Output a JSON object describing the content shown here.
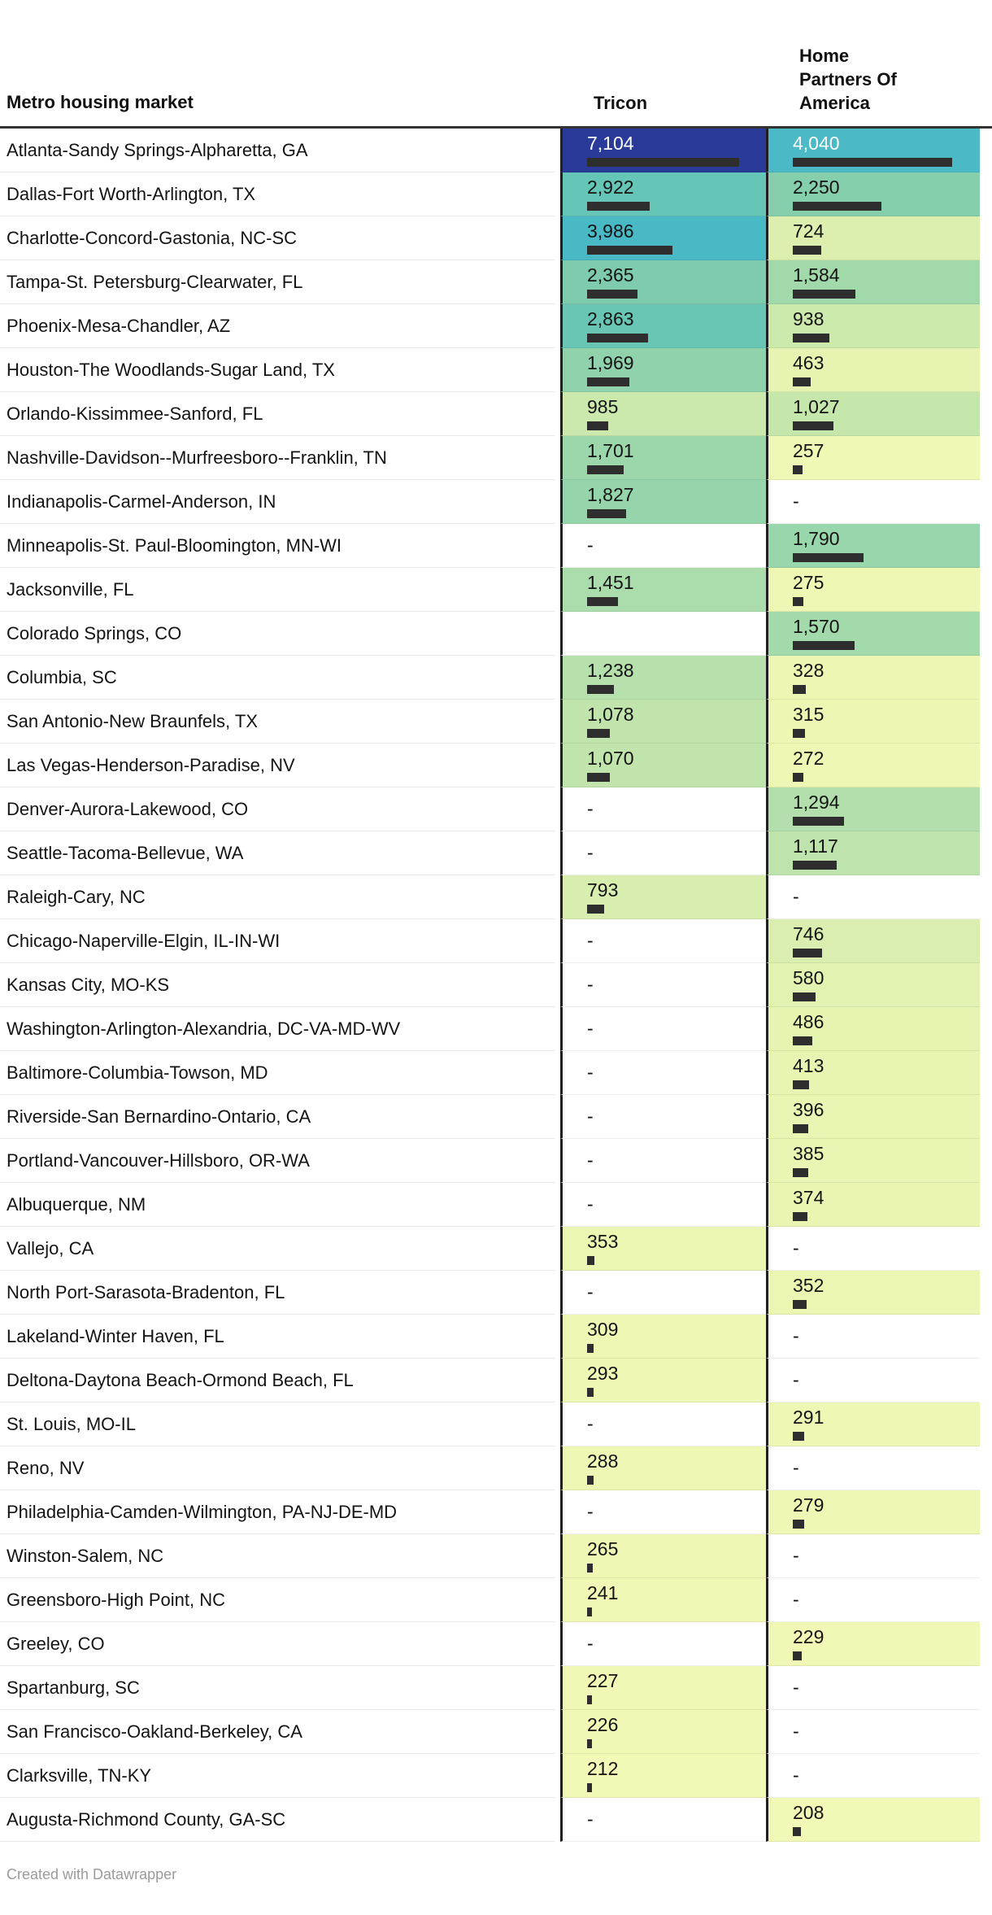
{
  "header": {
    "market_label": "Metro housing market",
    "tricon_label": "Tricon",
    "hpa_label": "Home\nPartners Of\nAmerica"
  },
  "columns": {
    "tricon_max": 7104,
    "hpa_max": 4040
  },
  "colors": {
    "header_rule": "#333333",
    "axis_line": "#202020",
    "bar": "#2e2e2e",
    "row_divider": "#e9e9e9",
    "credit_text": "#9b9b9b",
    "top_cell_blue": "#293a99",
    "top_cell_teal": "#4bbac6"
  },
  "footer": {
    "credit": "Created with Datawrapper"
  },
  "rows": [
    {
      "market": "Atlanta-Sandy Springs-Alpharetta, GA",
      "tricon": {
        "label": "7,104",
        "num": 7104,
        "bg": "#293a99",
        "text": "#ffffff"
      },
      "hpa": {
        "label": "4,040",
        "num": 4040,
        "bg": "#4bbac6",
        "text": "#ffffff"
      }
    },
    {
      "market": "Dallas-Fort Worth-Arlington, TX",
      "tricon": {
        "label": "2,922",
        "num": 2922,
        "bg": "#65c5b6",
        "text": "#141414"
      },
      "hpa": {
        "label": "2,250",
        "num": 2250,
        "bg": "#85cfad",
        "text": "#141414"
      }
    },
    {
      "market": "Charlotte-Concord-Gastonia, NC-SC",
      "tricon": {
        "label": "3,986",
        "num": 3986,
        "bg": "#49b9c6",
        "text": "#141414"
      },
      "hpa": {
        "label": "724",
        "num": 724,
        "bg": "#dcefae",
        "text": "#141414"
      }
    },
    {
      "market": "Tampa-St. Petersburg-Clearwater, FL",
      "tricon": {
        "label": "2,365",
        "num": 2365,
        "bg": "#7ecbad",
        "text": "#141414"
      },
      "hpa": {
        "label": "1,584",
        "num": 1584,
        "bg": "#a2d9ab",
        "text": "#141414"
      }
    },
    {
      "market": "Phoenix-Mesa-Chandler, AZ",
      "tricon": {
        "label": "2,863",
        "num": 2863,
        "bg": "#69c6b4",
        "text": "#141414"
      },
      "hpa": {
        "label": "938",
        "num": 938,
        "bg": "#cdeaad",
        "text": "#141414"
      }
    },
    {
      "market": "Houston-The Woodlands-Sugar Land, TX",
      "tricon": {
        "label": "1,969",
        "num": 1969,
        "bg": "#90d2ab",
        "text": "#141414"
      },
      "hpa": {
        "label": "463",
        "num": 463,
        "bg": "#e7f4b1",
        "text": "#141414"
      }
    },
    {
      "market": "Orlando-Kissimmee-Sanford, FL",
      "tricon": {
        "label": "985",
        "num": 985,
        "bg": "#cbe8ad",
        "text": "#141414"
      },
      "hpa": {
        "label": "1,027",
        "num": 1027,
        "bg": "#c6e7ac",
        "text": "#141414"
      }
    },
    {
      "market": "Nashville-Davidson--Murfreesboro--Franklin, TN",
      "tricon": {
        "label": "1,701",
        "num": 1701,
        "bg": "#9cd7ab",
        "text": "#141414"
      },
      "hpa": {
        "label": "257",
        "num": null,
        "bg": "#f0f8b5",
        "text": "#141414",
        "numbar": 257
      }
    },
    {
      "market": "Indianapolis-Carmel-Anderson, IN",
      "tricon": {
        "label": "1,827",
        "num": 1827,
        "bg": "#96d5ab",
        "text": "#141414"
      },
      "hpa": {
        "label": "-",
        "num": null,
        "bg": "#ffffff",
        "text": "#141414"
      }
    },
    {
      "market": "Minneapolis-St. Paul-Bloomington, MN-WI",
      "tricon": {
        "label": "-",
        "num": null,
        "bg": "#ffffff",
        "text": "#141414"
      },
      "hpa": {
        "label": "1,790",
        "num": 1790,
        "bg": "#98d6ab",
        "text": "#141414"
      }
    },
    {
      "market": "Jacksonville, FL",
      "tricon": {
        "label": "1,451",
        "num": 1451,
        "bg": "#aadcac",
        "text": "#141414"
      },
      "hpa": {
        "label": "275",
        "num": 275,
        "bg": "#eff7b4",
        "text": "#141414"
      }
    },
    {
      "market": "Colorado Springs, CO",
      "tricon": null,
      "hpa": {
        "label": "1,570",
        "num": 1570,
        "bg": "#a3daab",
        "text": "#141414"
      }
    },
    {
      "market": "Columbia, SC",
      "tricon": {
        "label": "1,238",
        "num": 1238,
        "bg": "#b6e0ac",
        "text": "#141414"
      },
      "hpa": {
        "label": "328",
        "num": 328,
        "bg": "#edf6b3",
        "text": "#141414"
      }
    },
    {
      "market": "San Antonio-New Braunfels, TX",
      "tricon": {
        "label": "1,078",
        "num": 1078,
        "bg": "#c0e4ac",
        "text": "#141414"
      },
      "hpa": {
        "label": "315",
        "num": 315,
        "bg": "#edf6b3",
        "text": "#141414"
      }
    },
    {
      "market": "Las Vegas-Henderson-Paradise, NV",
      "tricon": {
        "label": "1,070",
        "num": 1070,
        "bg": "#c1e4ac",
        "text": "#141414"
      },
      "hpa": {
        "label": "272",
        "num": 272,
        "bg": "#eff7b4",
        "text": "#141414"
      }
    },
    {
      "market": "Denver-Aurora-Lakewood, CO",
      "tricon": {
        "label": "-",
        "num": null,
        "bg": "#ffffff",
        "text": "#141414"
      },
      "hpa": {
        "label": "1,294",
        "num": 1294,
        "bg": "#b2dfac",
        "text": "#141414"
      }
    },
    {
      "market": "Seattle-Tacoma-Bellevue, WA",
      "tricon": {
        "label": "-",
        "num": null,
        "bg": "#ffffff",
        "text": "#141414"
      },
      "hpa": {
        "label": "1,117",
        "num": 1117,
        "bg": "#bee3ac",
        "text": "#141414"
      }
    },
    {
      "market": "Raleigh-Cary, NC",
      "tricon": {
        "label": "793",
        "num": 793,
        "bg": "#d8eeae",
        "text": "#141414"
      },
      "hpa": {
        "label": "-",
        "num": null,
        "bg": "#ffffff",
        "text": "#141414"
      }
    },
    {
      "market": "Chicago-Naperville-Elgin, IL-IN-WI",
      "tricon": {
        "label": "-",
        "num": null,
        "bg": "#ffffff",
        "text": "#141414"
      },
      "hpa": {
        "label": "746",
        "num": 746,
        "bg": "#daefaf",
        "text": "#141414"
      }
    },
    {
      "market": "Kansas City, MO-KS",
      "tricon": {
        "label": "-",
        "num": null,
        "bg": "#ffffff",
        "text": "#141414"
      },
      "hpa": {
        "label": "580",
        "num": 580,
        "bg": "#e2f2b0",
        "text": "#141414"
      }
    },
    {
      "market": "Washington-Arlington-Alexandria, DC-VA-MD-WV",
      "tricon": {
        "label": "-",
        "num": null,
        "bg": "#ffffff",
        "text": "#141414"
      },
      "hpa": {
        "label": "486",
        "num": 486,
        "bg": "#e6f4b1",
        "text": "#141414"
      }
    },
    {
      "market": "Baltimore-Columbia-Towson, MD",
      "tricon": {
        "label": "-",
        "num": null,
        "bg": "#ffffff",
        "text": "#141414"
      },
      "hpa": {
        "label": "413",
        "num": 413,
        "bg": "#e8f5b2",
        "text": "#141414"
      }
    },
    {
      "market": "Riverside-San Bernardino-Ontario, CA",
      "tricon": {
        "label": "-",
        "num": null,
        "bg": "#ffffff",
        "text": "#141414"
      },
      "hpa": {
        "label": "396",
        "num": 396,
        "bg": "#e9f5b2",
        "text": "#141414"
      }
    },
    {
      "market": "Portland-Vancouver-Hillsboro, OR-WA",
      "tricon": {
        "label": "-",
        "num": null,
        "bg": "#ffffff",
        "text": "#141414"
      },
      "hpa": {
        "label": "385",
        "num": 385,
        "bg": "#e9f5b2",
        "text": "#141414"
      }
    },
    {
      "market": "Albuquerque, NM",
      "tricon": {
        "label": "-",
        "num": null,
        "bg": "#ffffff",
        "text": "#141414"
      },
      "hpa": {
        "label": "374",
        "num": 374,
        "bg": "#eaf5b2",
        "text": "#141414"
      }
    },
    {
      "market": "Vallejo, CA",
      "tricon": {
        "label": "353",
        "num": 353,
        "bg": "#ecf6b3",
        "text": "#141414"
      },
      "hpa": {
        "label": "-",
        "num": null,
        "bg": "#ffffff",
        "text": "#141414"
      }
    },
    {
      "market": "North Port-Sarasota-Bradenton, FL",
      "tricon": {
        "label": "-",
        "num": null,
        "bg": "#ffffff",
        "text": "#141414"
      },
      "hpa": {
        "label": "352",
        "num": 352,
        "bg": "#ecf6b3",
        "text": "#141414"
      }
    },
    {
      "market": "Lakeland-Winter Haven, FL",
      "tricon": {
        "label": "309",
        "num": 309,
        "bg": "#eef7b4",
        "text": "#141414"
      },
      "hpa": {
        "label": "-",
        "num": null,
        "bg": "#ffffff",
        "text": "#141414"
      }
    },
    {
      "market": "Deltona-Daytona Beach-Ormond Beach, FL",
      "tricon": {
        "label": "293",
        "num": 293,
        "bg": "#eef7b4",
        "text": "#141414"
      },
      "hpa": {
        "label": "-",
        "num": null,
        "bg": "#ffffff",
        "text": "#141414"
      }
    },
    {
      "market": "St. Louis, MO-IL",
      "tricon": {
        "label": "-",
        "num": null,
        "bg": "#ffffff",
        "text": "#141414"
      },
      "hpa": {
        "label": "291",
        "num": 291,
        "bg": "#eef7b4",
        "text": "#141414"
      }
    },
    {
      "market": "Reno, NV",
      "tricon": {
        "label": "288",
        "num": 288,
        "bg": "#eff7b4",
        "text": "#141414"
      },
      "hpa": {
        "label": "-",
        "num": null,
        "bg": "#ffffff",
        "text": "#141414"
      }
    },
    {
      "market": "Philadelphia-Camden-Wilmington, PA-NJ-DE-MD",
      "tricon": {
        "label": "-",
        "num": null,
        "bg": "#ffffff",
        "text": "#141414"
      },
      "hpa": {
        "label": "279",
        "num": 279,
        "bg": "#eff7b4",
        "text": "#141414"
      }
    },
    {
      "market": "Winston-Salem, NC",
      "tricon": {
        "label": "265",
        "num": 265,
        "bg": "#f0f7b4",
        "text": "#141414"
      },
      "hpa": {
        "label": "-",
        "num": null,
        "bg": "#ffffff",
        "text": "#141414"
      }
    },
    {
      "market": "Greensboro-High Point, NC",
      "tricon": {
        "label": "241",
        "num": 241,
        "bg": "#f1f8b5",
        "text": "#141414"
      },
      "hpa": {
        "label": "-",
        "num": null,
        "bg": "#ffffff",
        "text": "#141414"
      }
    },
    {
      "market": "Greeley, CO",
      "tricon": {
        "label": "-",
        "num": null,
        "bg": "#ffffff",
        "text": "#141414"
      },
      "hpa": {
        "label": "229",
        "num": 229,
        "bg": "#f1f8b5",
        "text": "#141414"
      }
    },
    {
      "market": "Spartanburg, SC",
      "tricon": {
        "label": "227",
        "num": 227,
        "bg": "#f1f8b5",
        "text": "#141414"
      },
      "hpa": {
        "label": "-",
        "num": null,
        "bg": "#ffffff",
        "text": "#141414"
      }
    },
    {
      "market": "San Francisco-Oakland-Berkeley, CA",
      "tricon": {
        "label": "226",
        "num": 226,
        "bg": "#f1f8b5",
        "text": "#141414"
      },
      "hpa": {
        "label": "-",
        "num": null,
        "bg": "#ffffff",
        "text": "#141414"
      }
    },
    {
      "market": "Clarksville, TN-KY",
      "tricon": {
        "label": "212",
        "num": 212,
        "bg": "#f2f8b5",
        "text": "#141414"
      },
      "hpa": {
        "label": "-",
        "num": null,
        "bg": "#ffffff",
        "text": "#141414"
      }
    },
    {
      "market": "Augusta-Richmond County, GA-SC",
      "tricon": {
        "label": "-",
        "num": null,
        "bg": "#ffffff",
        "text": "#141414"
      },
      "hpa": {
        "label": "208",
        "num": 208,
        "bg": "#f2f8b5",
        "text": "#141414"
      }
    }
  ],
  "chart_data": {
    "type": "table",
    "title": "",
    "columns": [
      "Metro housing market",
      "Tricon",
      "Home Partners Of America"
    ],
    "categories": [
      "Atlanta-Sandy Springs-Alpharetta, GA",
      "Dallas-Fort Worth-Arlington, TX",
      "Charlotte-Concord-Gastonia, NC-SC",
      "Tampa-St. Petersburg-Clearwater, FL",
      "Phoenix-Mesa-Chandler, AZ",
      "Houston-The Woodlands-Sugar Land, TX",
      "Orlando-Kissimmee-Sanford, FL",
      "Nashville-Davidson--Murfreesboro--Franklin, TN",
      "Indianapolis-Carmel-Anderson, IN",
      "Minneapolis-St. Paul-Bloomington, MN-WI",
      "Jacksonville, FL",
      "Colorado Springs, CO",
      "Columbia, SC",
      "San Antonio-New Braunfels, TX",
      "Las Vegas-Henderson-Paradise, NV",
      "Denver-Aurora-Lakewood, CO",
      "Seattle-Tacoma-Bellevue, WA",
      "Raleigh-Cary, NC",
      "Chicago-Naperville-Elgin, IL-IN-WI",
      "Kansas City, MO-KS",
      "Washington-Arlington-Alexandria, DC-VA-MD-WV",
      "Baltimore-Columbia-Towson, MD",
      "Riverside-San Bernardino-Ontario, CA",
      "Portland-Vancouver-Hillsboro, OR-WA",
      "Albuquerque, NM",
      "Vallejo, CA",
      "North Port-Sarasota-Bradenton, FL",
      "Lakeland-Winter Haven, FL",
      "Deltona-Daytona Beach-Ormond Beach, FL",
      "St. Louis, MO-IL",
      "Reno, NV",
      "Philadelphia-Camden-Wilmington, PA-NJ-DE-MD",
      "Winston-Salem, NC",
      "Greensboro-High Point, NC",
      "Greeley, CO",
      "Spartanburg, SC",
      "San Francisco-Oakland-Berkeley, CA",
      "Clarksville, TN-KY",
      "Augusta-Richmond County, GA-SC"
    ],
    "series": [
      {
        "name": "Tricon",
        "values": [
          7104,
          2922,
          3986,
          2365,
          2863,
          1969,
          985,
          1701,
          1827,
          null,
          1451,
          null,
          1238,
          1078,
          1070,
          null,
          null,
          793,
          null,
          null,
          null,
          null,
          null,
          null,
          null,
          353,
          null,
          309,
          293,
          null,
          288,
          null,
          265,
          241,
          null,
          227,
          226,
          212,
          null
        ]
      },
      {
        "name": "Home Partners Of America",
        "values": [
          4040,
          2250,
          724,
          1584,
          938,
          463,
          1027,
          257,
          null,
          1790,
          275,
          1570,
          328,
          315,
          272,
          1294,
          1117,
          null,
          746,
          580,
          486,
          413,
          396,
          385,
          374,
          null,
          352,
          null,
          null,
          291,
          null,
          279,
          null,
          null,
          229,
          null,
          null,
          null,
          208
        ]
      }
    ],
    "layout_hints": {
      "heatmap_scale": "yellow-green-blue",
      "bars": "per-column mini bars scaled to column max",
      "legend": "none"
    }
  }
}
